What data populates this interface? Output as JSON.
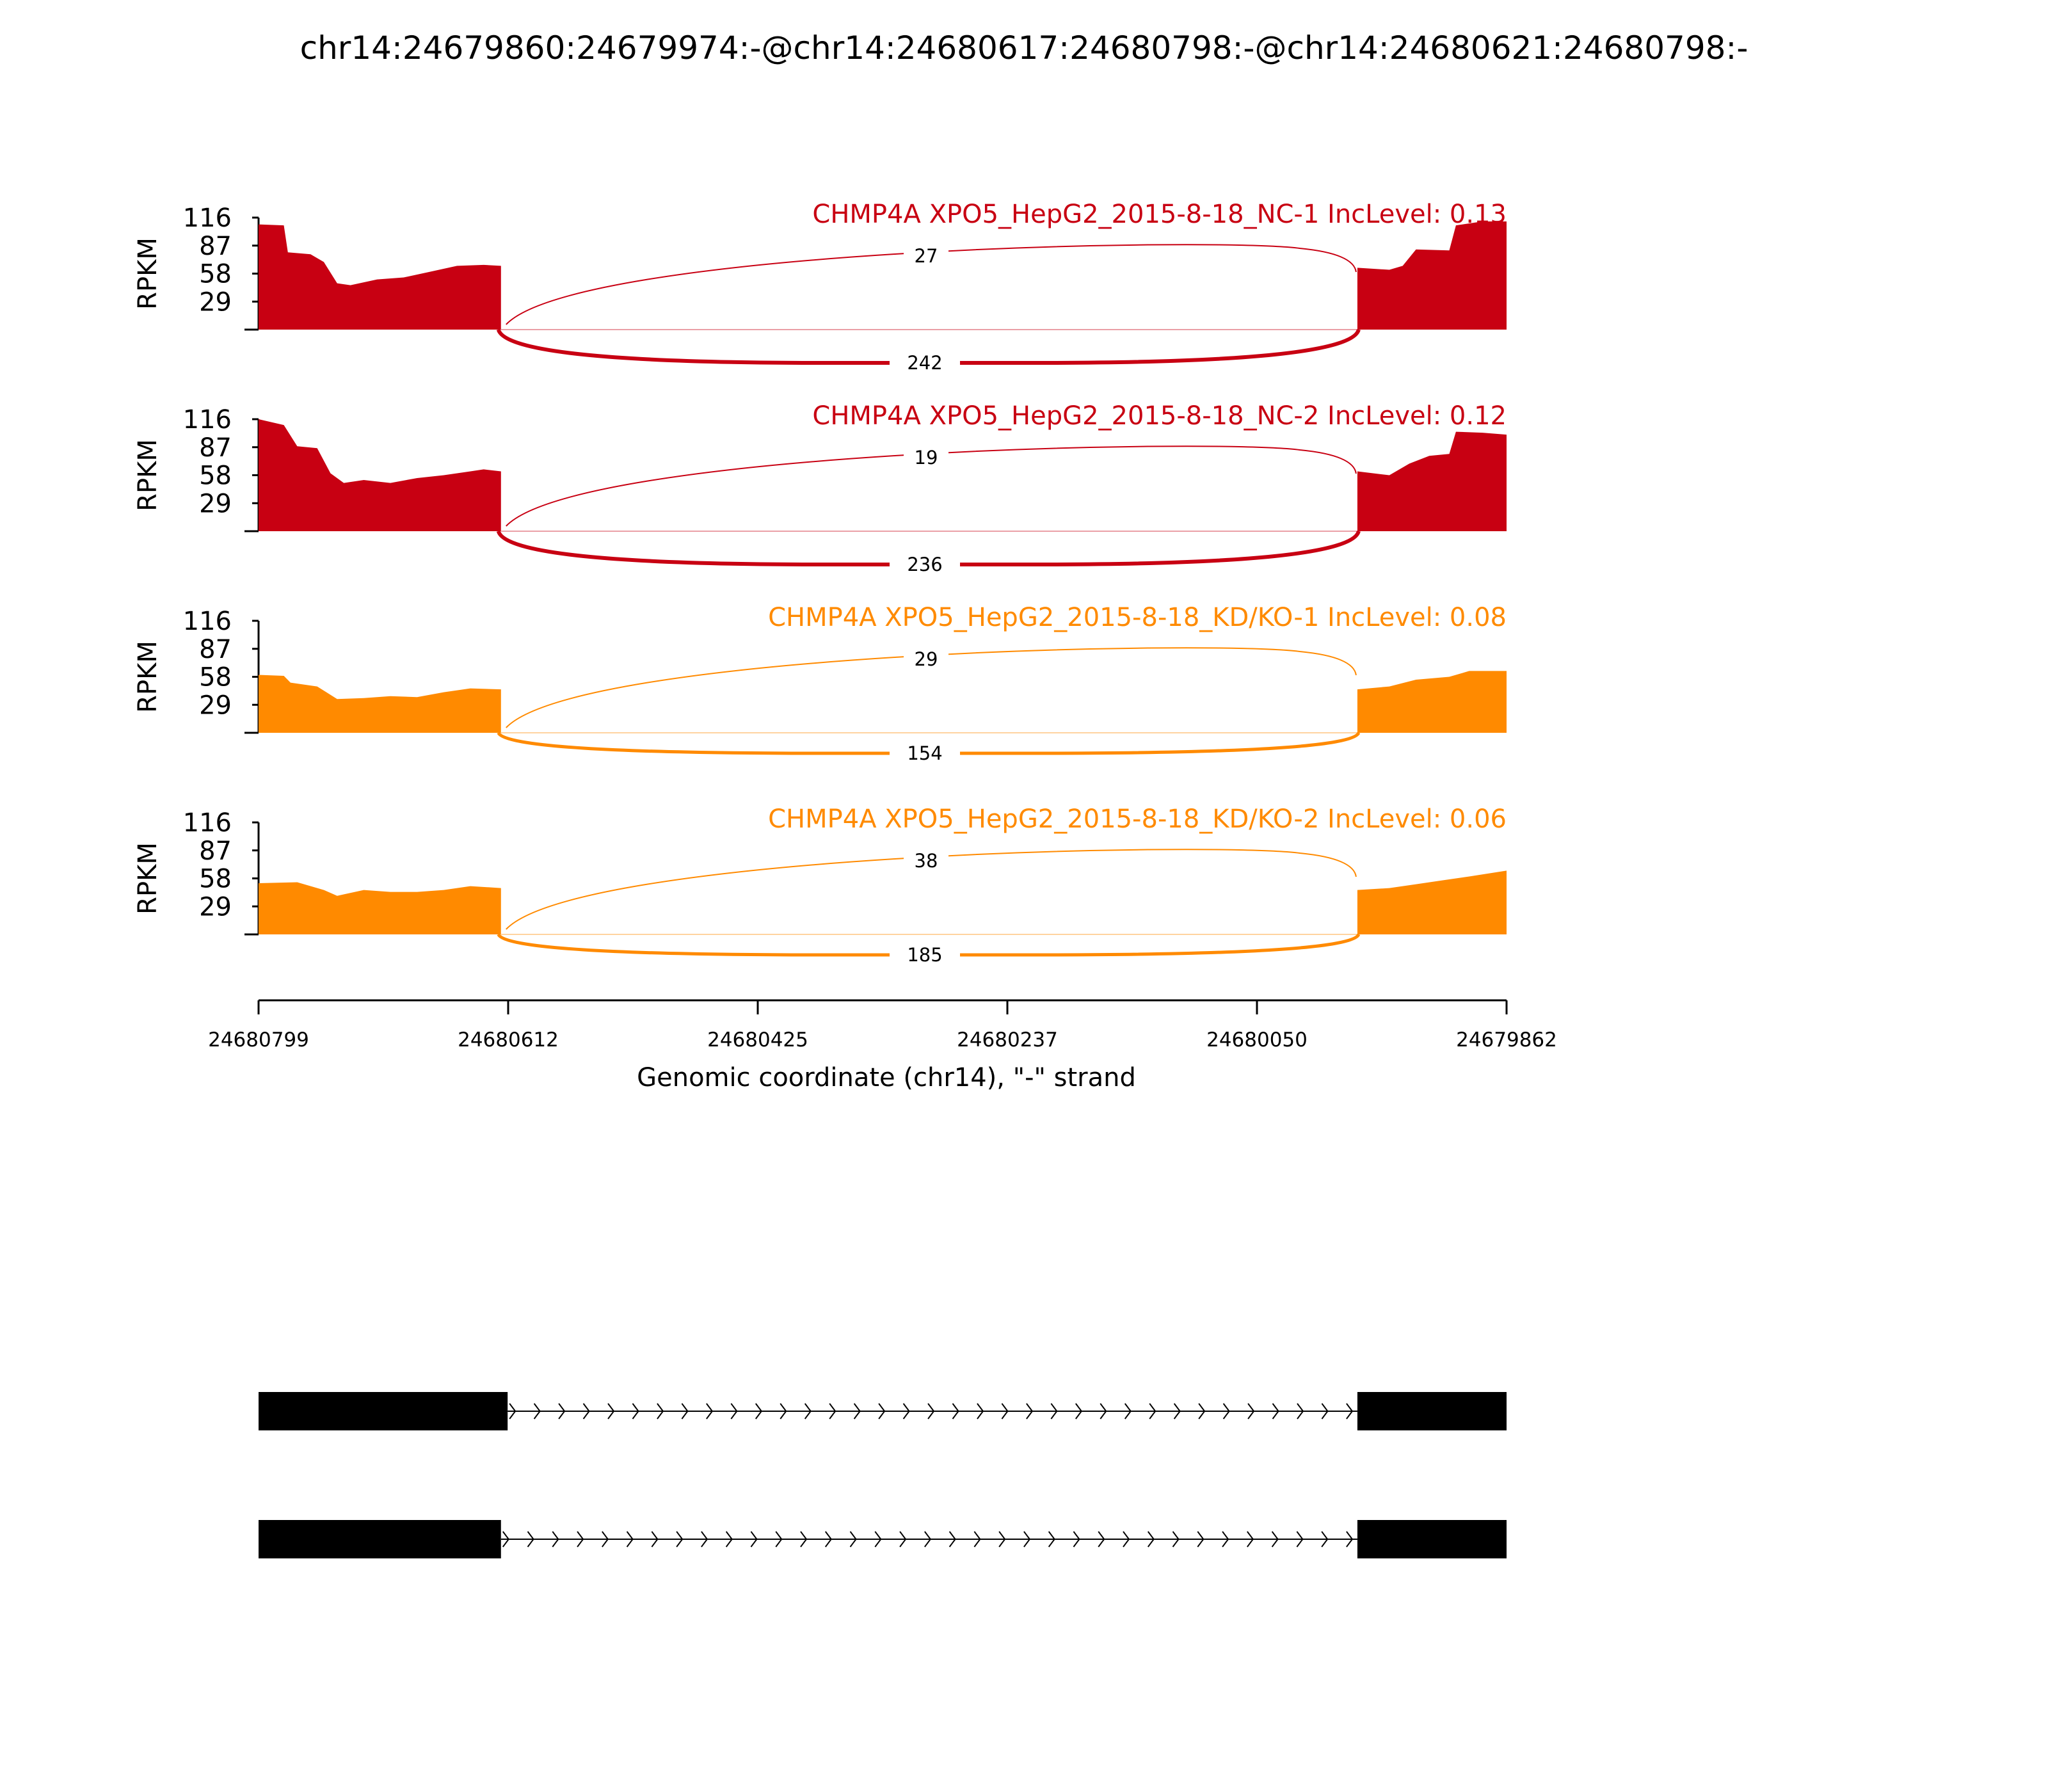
{
  "chart_data": {
    "type": "area",
    "title": "chr14:24679860:24679974:-@chr14:24680617:24680798:-@chr14:24680621:24680798:-",
    "xlabel": "Genomic coordinate (chr14), \"-\" strand",
    "ylabel": "RPKM",
    "x_ticks": [
      "24680799",
      "24680612",
      "24680425",
      "24680237",
      "24680050",
      "24679862"
    ],
    "x_range": [
      24680799,
      24679862
    ],
    "y_ticks": [
      "116",
      "87",
      "58",
      "29"
    ],
    "ylim": [
      0,
      116
    ],
    "colors": {
      "NC": "#c80012",
      "KD": "#ff8a00"
    },
    "exon_regions": [
      [
        24680799,
        24680617
      ],
      [
        24679974,
        24679862
      ]
    ],
    "samples": [
      {
        "label": "CHMP4A XPO5_HepG2_2015-8-18_NC-1 IncLevel: 0.13",
        "color": "#c80012",
        "inclusion_junction_count": "27",
        "skipping_junction_count": "242",
        "coverage": [
          [
            24680799,
            109
          ],
          [
            24680780,
            108
          ],
          [
            24680777,
            80
          ],
          [
            24680760,
            78
          ],
          [
            24680750,
            70
          ],
          [
            24680740,
            48
          ],
          [
            24680730,
            46
          ],
          [
            24680710,
            52
          ],
          [
            24680690,
            54
          ],
          [
            24680670,
            60
          ],
          [
            24680650,
            66
          ],
          [
            24680630,
            67
          ],
          [
            24680617,
            66
          ],
          [
            24679974,
            64
          ],
          [
            24679950,
            62
          ],
          [
            24679940,
            66
          ],
          [
            24679930,
            83
          ],
          [
            24679905,
            82
          ],
          [
            24679900,
            108
          ],
          [
            24679880,
            112
          ],
          [
            24679862,
            112
          ]
        ]
      },
      {
        "label": "CHMP4A XPO5_HepG2_2015-8-18_NC-2 IncLevel: 0.12",
        "color": "#c80012",
        "inclusion_junction_count": "19",
        "skipping_junction_count": "236",
        "coverage": [
          [
            24680799,
            116
          ],
          [
            24680780,
            110
          ],
          [
            24680770,
            88
          ],
          [
            24680755,
            86
          ],
          [
            24680745,
            60
          ],
          [
            24680735,
            50
          ],
          [
            24680720,
            53
          ],
          [
            24680700,
            50
          ],
          [
            24680680,
            55
          ],
          [
            24680660,
            58
          ],
          [
            24680640,
            62
          ],
          [
            24680630,
            64
          ],
          [
            24680617,
            62
          ],
          [
            24679974,
            62
          ],
          [
            24679950,
            58
          ],
          [
            24679935,
            70
          ],
          [
            24679920,
            78
          ],
          [
            24679905,
            80
          ],
          [
            24679900,
            103
          ],
          [
            24679880,
            102
          ],
          [
            24679862,
            100
          ]
        ]
      },
      {
        "label": "CHMP4A XPO5_HepG2_2015-8-18_KD/KO-1 IncLevel: 0.08",
        "color": "#ff8a00",
        "inclusion_junction_count": "29",
        "skipping_junction_count": "154",
        "coverage": [
          [
            24680799,
            60
          ],
          [
            24680780,
            59
          ],
          [
            24680775,
            52
          ],
          [
            24680755,
            48
          ],
          [
            24680740,
            35
          ],
          [
            24680720,
            36
          ],
          [
            24680700,
            38
          ],
          [
            24680680,
            37
          ],
          [
            24680660,
            42
          ],
          [
            24680640,
            46
          ],
          [
            24680617,
            45
          ],
          [
            24679974,
            45
          ],
          [
            24679950,
            48
          ],
          [
            24679930,
            55
          ],
          [
            24679905,
            58
          ],
          [
            24679890,
            64
          ],
          [
            24679862,
            64
          ]
        ]
      },
      {
        "label": "CHMP4A XPO5_HepG2_2015-8-18_KD/KO-2 IncLevel: 0.06",
        "color": "#ff8a00",
        "inclusion_junction_count": "38",
        "skipping_junction_count": "185",
        "coverage": [
          [
            24680799,
            53
          ],
          [
            24680770,
            54
          ],
          [
            24680750,
            46
          ],
          [
            24680740,
            40
          ],
          [
            24680720,
            46
          ],
          [
            24680700,
            44
          ],
          [
            24680680,
            44
          ],
          [
            24680660,
            46
          ],
          [
            24680640,
            50
          ],
          [
            24680617,
            48
          ],
          [
            24679974,
            46
          ],
          [
            24679950,
            48
          ],
          [
            24679930,
            52
          ],
          [
            24679910,
            56
          ],
          [
            24679890,
            60
          ],
          [
            24679862,
            66
          ]
        ]
      }
    ],
    "transcripts": [
      {
        "exons": [
          [
            24680799,
            24680612
          ],
          [
            24679974,
            24679862
          ]
        ]
      },
      {
        "exons": [
          [
            24680799,
            24680617
          ],
          [
            24679974,
            24679862
          ]
        ]
      }
    ]
  }
}
